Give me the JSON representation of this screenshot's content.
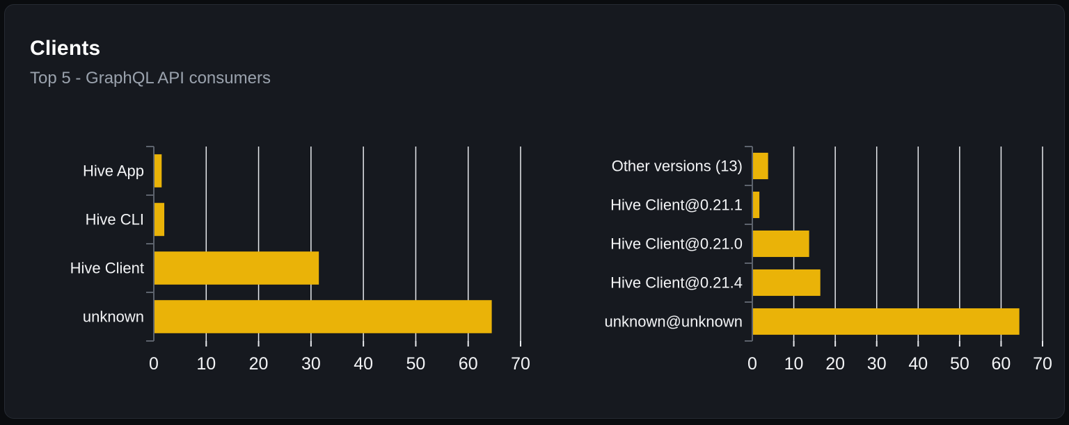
{
  "card": {
    "title": "Clients",
    "subtitle": "Top 5 - GraphQL API consumers"
  },
  "colors": {
    "bar": "#eab308",
    "grid": "#e8eaee",
    "axis": "#5d636d",
    "tick_label": "#f3f4f6",
    "category_label": "#f3f4f6",
    "title": "#ffffff",
    "subtitle": "#9aa2ad",
    "card_bg": "#16191f",
    "card_border": "#262b33",
    "page_bg": "#0a0c0f"
  },
  "chart_data": [
    {
      "type": "bar",
      "orientation": "horizontal",
      "title": "",
      "categories": [
        "Hive App",
        "Hive CLI",
        "Hive Client",
        "unknown"
      ],
      "values": [
        1.5,
        2,
        31.5,
        64.5
      ],
      "xlim": [
        0,
        70
      ],
      "xticks": [
        0,
        10,
        20,
        30,
        40,
        50,
        60,
        70
      ],
      "xlabel": "",
      "ylabel": "",
      "grid": true,
      "legend": false
    },
    {
      "type": "bar",
      "orientation": "horizontal",
      "title": "",
      "categories": [
        "Other versions (13)",
        "Hive Client@0.21.1",
        "Hive Client@0.21.0",
        "Hive Client@0.21.4",
        "unknown@unknown"
      ],
      "values": [
        3.8,
        1.7,
        13.7,
        16.4,
        64.4
      ],
      "xlim": [
        0,
        70
      ],
      "xticks": [
        0,
        10,
        20,
        30,
        40,
        50,
        60,
        70
      ],
      "xlabel": "",
      "ylabel": "",
      "grid": true,
      "legend": false
    }
  ]
}
